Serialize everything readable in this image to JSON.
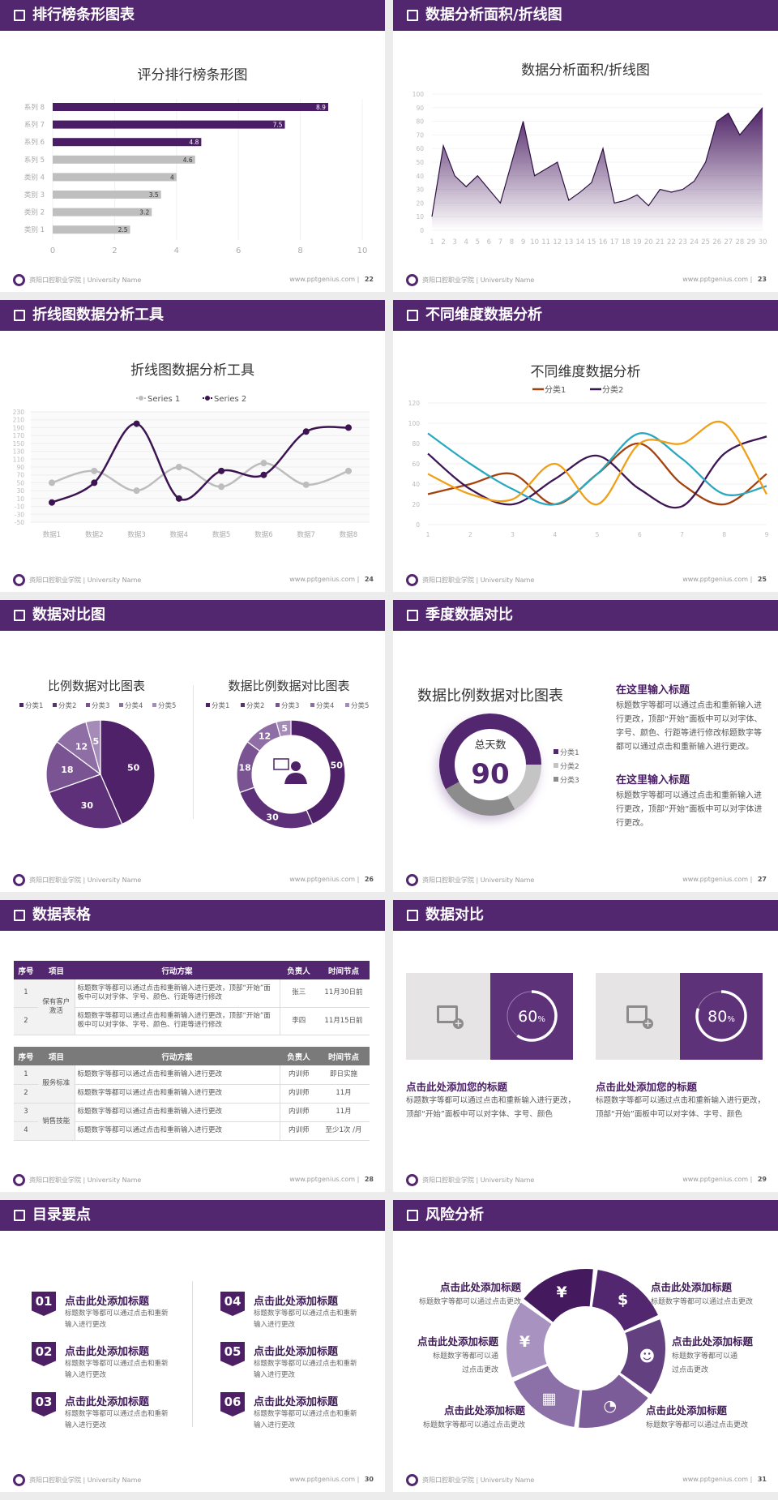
{
  "footer": {
    "school": "资阳口腔职业学院 | University Name",
    "url": "www.pptgenius.com"
  },
  "colors": {
    "brand": "#532770",
    "grey": "#bfbfbf"
  },
  "slides": [
    {
      "title": "排行榜条形图表",
      "page": "22"
    },
    {
      "title": "数据分析面积/折线图",
      "page": "23"
    },
    {
      "title": "折线图数据分析工具",
      "page": "24"
    },
    {
      "title": "不同维度数据分析",
      "page": "25"
    },
    {
      "title": "数据对比图",
      "page": "26"
    },
    {
      "title": "季度数据对比",
      "page": "27",
      "blocks": [
        {
          "heading": "在这里输入标题",
          "text": "标题数字等都可以通过点击和重新输入进行更改，顶部“开始”面板中可以对字体、字号、颜色、行距等进行修改标题数字等都可以通过点击和重新输入进行更改。"
        },
        {
          "heading": "在这里输入标题",
          "text": "标题数字等都可以通过点击和重新输入进行更改，顶部“开始”面板中可以对字体进行更改。"
        }
      ]
    },
    {
      "title": "数据表格",
      "page": "28",
      "headers": [
        "序号",
        "项目",
        "行动方案",
        "负责人",
        "时间节点"
      ],
      "table1": {
        "groups": [
          "保有客户激活"
        ],
        "rows": [
          [
            "1",
            "标题数字等都可以通过点击和重新输入进行更改，顶部“开始”面板中可以对字体、字号、颜色、行距等进行修改",
            "张三",
            "11月30日前"
          ],
          [
            "2",
            "标题数字等都可以通过点击和重新输入进行更改，顶部“开始”面板中可以对字体、字号、颜色、行距等进行修改",
            "李四",
            "11月15日前"
          ]
        ]
      },
      "table2": {
        "groups": [
          "服务标准",
          "销售技能"
        ],
        "rows": [
          [
            "1",
            "标题数字等都可以通过点击和重新输入进行更改",
            "内训师",
            "即日实施"
          ],
          [
            "2",
            "标题数字等都可以通过点击和重新输入进行更改",
            "内训师",
            "11月"
          ],
          [
            "3",
            "标题数字等都可以通过点击和重新输入进行更改",
            "内训师",
            "11月"
          ],
          [
            "4",
            "标题数字等都可以通过点击和重新输入进行更改",
            "内训师",
            "至少1次 /月"
          ]
        ]
      }
    },
    {
      "title": "数据对比",
      "page": "29",
      "cards": [
        {
          "percent": 60,
          "label": "60",
          "unit": "%",
          "heading": "点击此处添加您的标题",
          "text": "标题数字等都可以通过点击和重新输入进行更改，顶部“开始”面板中可以对字体、字号、颜色",
          "icon": "image-add-icon"
        },
        {
          "percent": 80,
          "label": "80",
          "unit": "%",
          "heading": "点击此处添加您的标题",
          "text": "标题数字等都可以通过点击和重新输入进行更改，顶部“开始”面板中可以对字体、字号、颜色",
          "icon": "image-add-icon"
        }
      ]
    },
    {
      "title": "目录要点",
      "page": "30",
      "items": [
        {
          "num": "01",
          "heading": "点击此处添加标题",
          "text": "标题数字等都可以通过点击和重新输入进行更改"
        },
        {
          "num": "02",
          "heading": "点击此处添加标题",
          "text": "标题数字等都可以通过点击和重新输入进行更改"
        },
        {
          "num": "03",
          "heading": "点击此处添加标题",
          "text": "标题数字等都可以通过点击和重新输入进行更改"
        },
        {
          "num": "04",
          "heading": "点击此处添加标题",
          "text": "标题数字等都可以通过点击和重新输入进行更改"
        },
        {
          "num": "05",
          "heading": "点击此处添加标题",
          "text": "标题数字等都可以通过点击和重新输入进行更改"
        },
        {
          "num": "06",
          "heading": "点击此处添加标题",
          "text": "标题数字等都可以通过点击和重新输入进行更改"
        }
      ]
    },
    {
      "title": "风险分析",
      "page": "31",
      "items": [
        {
          "heading": "点击此处添加标题",
          "text": "标题数字等都可以通过点击更改"
        },
        {
          "heading": "点击此处添加标题",
          "text": "标题数字等都可以通过点击更改"
        },
        {
          "heading": "点击此处添加标题",
          "text": "标题数字等都可以通过点击更改"
        },
        {
          "heading": "点击此处添加标题",
          "text": "标题数字等都可以通过点击更改"
        },
        {
          "heading": "点击此处添加标题",
          "text": "标题数字等都可以通过点击更改"
        },
        {
          "heading": "点击此处添加标题",
          "text": "标题数字等都可以通过点击更改"
        }
      ],
      "cycle_icons": [
        "money-bag-icon",
        "coins-icon",
        "people-icon",
        "pie-chart-icon",
        "building-icon",
        "hand-money-icon"
      ],
      "cycle_colors": [
        "#45195e",
        "#532770",
        "#634080",
        "#7b5b98",
        "#8c70a8",
        "#a892c0"
      ]
    }
  ],
  "chart_data": [
    {
      "type": "bar",
      "title": "评分排行榜条形图",
      "orientation": "horizontal",
      "categories": [
        "系列 8",
        "系列 7",
        "系列 6",
        "系列 5",
        "类别 4",
        "类别 3",
        "类别 2",
        "类别 1"
      ],
      "values": [
        8.9,
        7.5,
        4.8,
        4.6,
        4,
        3.5,
        3.2,
        2.5
      ],
      "bar_colors": [
        "#4a1d66",
        "#4a1d66",
        "#4a1d66",
        "#bfbfbf",
        "#bfbfbf",
        "#bfbfbf",
        "#bfbfbf",
        "#bfbfbf"
      ],
      "xlim": [
        0,
        10
      ],
      "xticks": [
        "0",
        "2",
        "4",
        "6",
        "8",
        "10"
      ],
      "grid": true
    },
    {
      "type": "area",
      "title": "数据分析面积/折线图",
      "x": [
        1,
        2,
        3,
        4,
        5,
        6,
        7,
        8,
        9,
        10,
        11,
        12,
        13,
        14,
        15,
        16,
        17,
        18,
        19,
        20,
        21,
        22,
        23,
        24,
        25,
        26,
        27,
        28,
        29,
        30
      ],
      "values": [
        10,
        62,
        40,
        32,
        40,
        30,
        20,
        50,
        80,
        40,
        45,
        50,
        22,
        28,
        35,
        60,
        20,
        22,
        26,
        18,
        30,
        28,
        30,
        36,
        50,
        80,
        86,
        70,
        80,
        90
      ],
      "ylim": [
        0,
        100
      ],
      "yticks": [
        "0",
        "10",
        "20",
        "30",
        "40",
        "50",
        "60",
        "70",
        "80",
        "90",
        "100"
      ],
      "color": "#4e2266"
    },
    {
      "type": "line",
      "title": "折线图数据分析工具",
      "smooth": true,
      "categories": [
        "数据1",
        "数据2",
        "数据3",
        "数据4",
        "数据5",
        "数据6",
        "数据7",
        "数据8"
      ],
      "series": [
        {
          "name": "Series 1",
          "values": [
            50,
            80,
            30,
            90,
            40,
            100,
            45,
            80
          ],
          "color": "#bdbdbd"
        },
        {
          "name": "Series 2",
          "values": [
            0,
            50,
            200,
            10,
            80,
            70,
            180,
            190
          ],
          "color": "#3b1451"
        }
      ],
      "ylim": [
        -50,
        230
      ],
      "yticks": [
        "230",
        "210",
        "190",
        "170",
        "150",
        "130",
        "110",
        "90",
        "70",
        "50",
        "30",
        "10",
        "-10",
        "-30",
        "-50"
      ],
      "legend": "top"
    },
    {
      "type": "line",
      "title": "不同维度数据分析",
      "smooth": true,
      "x": [
        "1",
        "2",
        "3",
        "4",
        "5",
        "6",
        "7",
        "8",
        "9"
      ],
      "series": [
        {
          "name": "分类1",
          "values": [
            30,
            40,
            50,
            20,
            50,
            80,
            40,
            20,
            50
          ],
          "color": "#a5410e"
        },
        {
          "name": "分类2",
          "values": [
            70,
            35,
            20,
            45,
            68,
            35,
            18,
            70,
            87
          ],
          "color": "#3d1653"
        },
        {
          "values": [
            90,
            60,
            35,
            20,
            50,
            90,
            65,
            30,
            38
          ],
          "color": "#2aa8c0"
        },
        {
          "values": [
            50,
            30,
            25,
            60,
            20,
            80,
            80,
            100,
            30
          ],
          "color": "#f0a016"
        }
      ],
      "ylim": [
        0,
        120
      ],
      "yticks": [
        "0",
        "20",
        "40",
        "60",
        "80",
        "100",
        "120"
      ],
      "legend": "top"
    },
    {
      "type": "pie",
      "title": "比例数据对比图表",
      "categories": [
        "分类1",
        "分类2",
        "分类3",
        "分类4",
        "分类5"
      ],
      "values": [
        50,
        30,
        18,
        12,
        5
      ],
      "colors": [
        "#4f2168",
        "#5e3079",
        "#7a5393",
        "#8f6ea6",
        "#a58bb8"
      ],
      "legend": "top"
    },
    {
      "type": "pie",
      "title": "数据比例数据对比图表",
      "donut": true,
      "categories": [
        "分类1",
        "分类2",
        "分类3",
        "分类4",
        "分类5"
      ],
      "values": [
        50,
        30,
        18,
        12,
        5
      ],
      "colors": [
        "#4f2168",
        "#5e3079",
        "#7a5393",
        "#8f6ea6",
        "#a58bb8"
      ],
      "legend": "top",
      "center_icon": "presenter-icon"
    },
    {
      "type": "pie",
      "title": "数据比例数据对比图表",
      "donut": true,
      "center_label": "总天数",
      "center_value": "90",
      "categories": [
        "分类1",
        "分类2",
        "分类3"
      ],
      "values": [
        58,
        17,
        25
      ],
      "colors": [
        "#532770",
        "#c4c4c4",
        "#8c8c8c"
      ],
      "legend": "right"
    }
  ]
}
